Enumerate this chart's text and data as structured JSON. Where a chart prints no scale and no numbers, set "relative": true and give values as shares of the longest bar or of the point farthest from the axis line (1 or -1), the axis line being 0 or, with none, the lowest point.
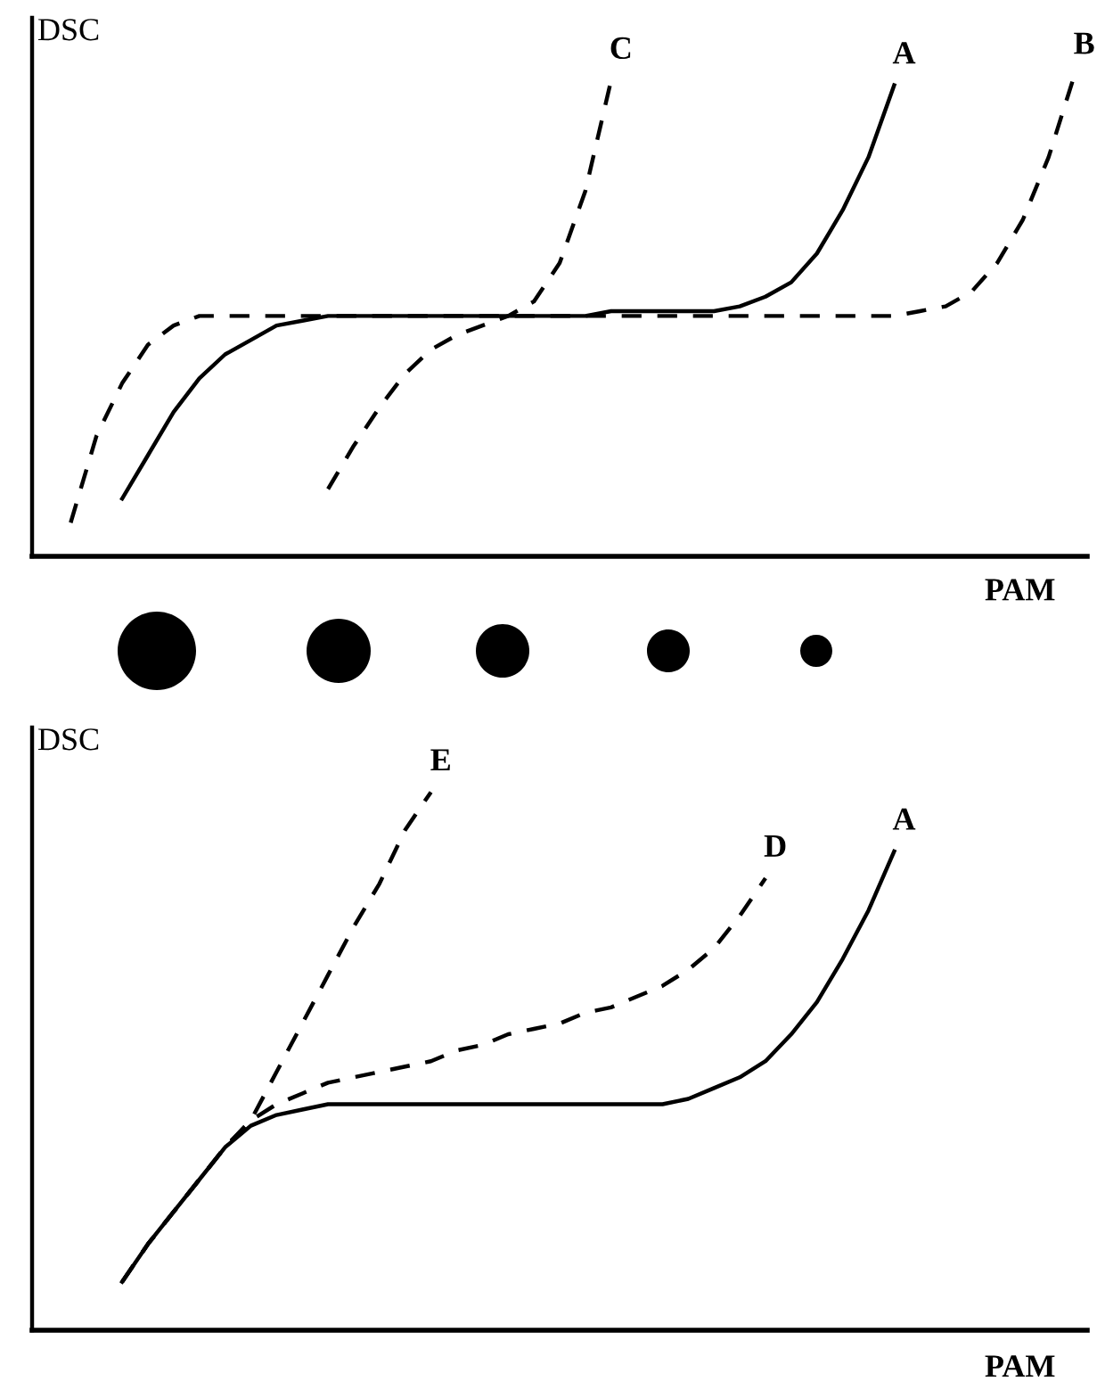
{
  "chart_data": [
    {
      "type": "line",
      "relative": true,
      "xlabel": "PAM",
      "ylabel": "DSC",
      "categories": [
        null,
        null,
        null,
        null,
        null,
        null,
        null,
        null,
        null,
        null,
        null,
        null,
        null,
        null,
        null,
        null,
        null,
        null,
        null,
        null,
        null,
        null,
        null,
        null,
        null,
        null,
        null,
        null,
        null,
        null,
        null,
        null,
        null,
        null,
        null,
        null,
        null,
        null,
        null,
        null
      ],
      "series": [
        {
          "name": "C",
          "color": "#000000",
          "line_style": "dashed",
          "values": [
            null,
            null,
            null,
            null,
            null,
            null,
            null,
            null,
            null,
            null,
            0.14,
            0.23,
            0.31,
            0.38,
            0.43,
            0.46,
            0.48,
            0.5,
            0.53,
            0.61,
            0.76,
            0.99,
            null,
            null,
            null,
            null,
            null,
            null,
            null,
            null,
            null,
            null,
            null,
            null,
            null,
            null,
            null,
            null,
            null,
            null
          ]
        },
        {
          "name": "A",
          "color": "#000000",
          "line_style": "solid",
          "values": [
            null,
            null,
            0.12,
            0.21,
            0.3,
            0.37,
            0.42,
            0.45,
            0.48,
            0.49,
            0.5,
            0.5,
            0.5,
            0.5,
            0.5,
            0.5,
            0.5,
            0.5,
            0.5,
            0.5,
            0.5,
            0.51,
            0.51,
            0.51,
            0.51,
            0.51,
            0.52,
            0.54,
            0.57,
            0.63,
            0.72,
            0.83,
            0.98,
            null,
            null,
            null,
            null,
            null,
            null,
            null
          ]
        },
        {
          "name": "B",
          "color": "#000000",
          "line_style": "dashed",
          "values": [
            0.07,
            0.25,
            0.36,
            0.44,
            0.48,
            0.5,
            0.5,
            0.5,
            0.5,
            0.5,
            0.5,
            0.5,
            0.5,
            0.5,
            0.5,
            0.5,
            0.5,
            0.5,
            0.5,
            0.5,
            0.5,
            0.5,
            0.5,
            0.5,
            0.5,
            0.5,
            0.5,
            0.5,
            0.5,
            0.5,
            0.5,
            0.5,
            0.5,
            0.51,
            0.52,
            0.55,
            0.61,
            0.7,
            0.83,
            1.0
          ]
        }
      ]
    },
    {
      "type": "line",
      "relative": true,
      "xlabel": "PAM",
      "ylabel": "DSC",
      "categories": [
        null,
        null,
        null,
        null,
        null,
        null,
        null,
        null,
        null,
        null,
        null,
        null,
        null,
        null,
        null,
        null,
        null,
        null,
        null,
        null,
        null,
        null,
        null,
        null,
        null,
        null,
        null,
        null,
        null,
        null,
        null,
        null,
        null,
        null,
        null,
        null,
        null,
        null,
        null,
        null
      ],
      "series": [
        {
          "name": "E",
          "color": "#000000",
          "line_style": "dashed",
          "values": [
            null,
            null,
            0.09,
            0.16,
            0.22,
            0.28,
            0.34,
            0.39,
            0.48,
            0.57,
            0.66,
            0.75,
            0.83,
            0.93,
            1.0,
            null,
            null,
            null,
            null,
            null,
            null,
            null,
            null,
            null,
            null,
            null,
            null,
            null,
            null,
            null,
            null,
            null,
            null,
            null,
            null,
            null,
            null,
            null,
            null,
            null
          ]
        },
        {
          "name": "D",
          "color": "#000000",
          "line_style": "dashed",
          "values": [
            null,
            null,
            0.09,
            0.16,
            0.22,
            0.28,
            0.34,
            0.39,
            0.42,
            0.44,
            0.46,
            0.47,
            0.48,
            0.49,
            0.5,
            0.52,
            0.53,
            0.55,
            0.56,
            0.57,
            0.59,
            0.6,
            0.62,
            0.64,
            0.67,
            0.71,
            0.77,
            0.84,
            null,
            null,
            null,
            null,
            null,
            null,
            null,
            null,
            null,
            null,
            null,
            null
          ]
        },
        {
          "name": "A",
          "color": "#000000",
          "line_style": "solid",
          "values": [
            null,
            null,
            0.09,
            0.16,
            0.22,
            0.28,
            0.34,
            0.38,
            0.4,
            0.41,
            0.42,
            0.42,
            0.42,
            0.42,
            0.42,
            0.42,
            0.42,
            0.42,
            0.42,
            0.42,
            0.42,
            0.42,
            0.42,
            0.42,
            0.43,
            0.45,
            0.47,
            0.5,
            0.55,
            0.61,
            0.69,
            0.78,
            0.89,
            null,
            null,
            null,
            null,
            null,
            null,
            null
          ]
        }
      ]
    }
  ]
}
